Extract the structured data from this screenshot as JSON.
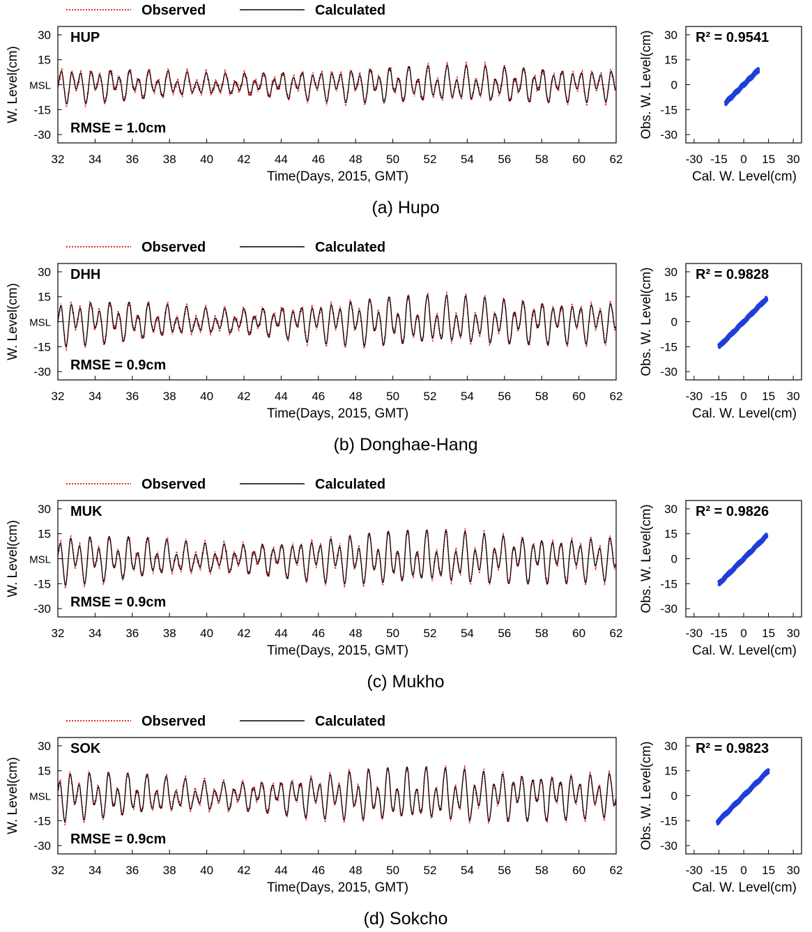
{
  "legend": {
    "observed": "Observed",
    "calculated": "Calculated"
  },
  "colors": {
    "observed": "#e8262a",
    "calculated": "#000000",
    "scatter": "#1f3fd8",
    "axis": "#000000",
    "msl_line": "#999999"
  },
  "chart_data": [
    {
      "type": "line",
      "panel": "(a) Hupo",
      "code": "HUP",
      "rmse_label": "RMSE = 1.0cm",
      "xlabel": "Time(Days, 2015, GMT)",
      "ylabel": "W. Level(cm)",
      "xlim": [
        32,
        62
      ],
      "ylim": [
        -35,
        35
      ],
      "x_ticks": [
        32,
        34,
        36,
        38,
        40,
        42,
        44,
        46,
        48,
        50,
        52,
        54,
        56,
        58,
        60,
        62
      ],
      "y_ticks": [
        30,
        15,
        "MSL",
        -15,
        -30
      ],
      "series": [
        {
          "name": "Observed",
          "style": "dotted"
        },
        {
          "name": "Calculated",
          "style": "solid"
        }
      ],
      "tide_amplitude_cm": {
        "start": 10,
        "mid": 6,
        "spring": 10,
        "end": 8
      },
      "scatter": {
        "xlabel": "Cal. W. Level(cm)",
        "ylabel": "Obs. W. Level(cm)",
        "r2_label": "R² = 0.9541",
        "xlim": [
          -35,
          35
        ],
        "ylim": [
          -35,
          35
        ],
        "x_ticks": [
          -30,
          -15,
          0,
          15,
          30
        ],
        "y_ticks": [
          30,
          15,
          0,
          -15,
          -30
        ],
        "range": [
          -11,
          9
        ]
      }
    },
    {
      "type": "line",
      "panel": "(b) Donghae-Hang",
      "code": "DHH",
      "rmse_label": "RMSE = 0.9cm",
      "xlabel": "Time(Days, 2015, GMT)",
      "ylabel": "W. Level(cm)",
      "xlim": [
        32,
        62
      ],
      "ylim": [
        -35,
        35
      ],
      "x_ticks": [
        32,
        34,
        36,
        38,
        40,
        42,
        44,
        46,
        48,
        50,
        52,
        54,
        56,
        58,
        60,
        62
      ],
      "y_ticks": [
        30,
        15,
        "MSL",
        -15,
        -30
      ],
      "series": [
        {
          "name": "Observed",
          "style": "dotted"
        },
        {
          "name": "Calculated",
          "style": "solid"
        }
      ],
      "tide_amplitude_cm": {
        "start": 13,
        "mid": 7,
        "spring": 14,
        "end": 10
      },
      "scatter": {
        "xlabel": "Cal. W. Level(cm)",
        "ylabel": "Obs. W. Level(cm)",
        "r2_label": "R² = 0.9828",
        "xlim": [
          -35,
          35
        ],
        "ylim": [
          -35,
          35
        ],
        "x_ticks": [
          -30,
          -15,
          0,
          15,
          30
        ],
        "y_ticks": [
          30,
          15,
          0,
          -15,
          -30
        ],
        "range": [
          -15,
          14
        ]
      }
    },
    {
      "type": "line",
      "panel": "(c) Mukho",
      "code": "MUK",
      "rmse_label": "RMSE = 0.9cm",
      "xlabel": "Time(Days, 2015, GMT)",
      "ylabel": "W. Level(cm)",
      "xlim": [
        32,
        62
      ],
      "ylim": [
        -35,
        35
      ],
      "x_ticks": [
        32,
        34,
        36,
        38,
        40,
        42,
        44,
        46,
        48,
        50,
        52,
        54,
        56,
        58,
        60,
        62
      ],
      "y_ticks": [
        30,
        15,
        "MSL",
        -15,
        -30
      ],
      "series": [
        {
          "name": "Observed",
          "style": "dotted"
        },
        {
          "name": "Calculated",
          "style": "solid"
        }
      ],
      "tide_amplitude_cm": {
        "start": 14,
        "mid": 8,
        "spring": 15,
        "end": 11
      },
      "scatter": {
        "xlabel": "Cal. W. Level(cm)",
        "ylabel": "Obs. W. Level(cm)",
        "r2_label": "R² = 0.9826",
        "xlim": [
          -35,
          35
        ],
        "ylim": [
          -35,
          35
        ],
        "x_ticks": [
          -30,
          -15,
          0,
          15,
          30
        ],
        "y_ticks": [
          30,
          15,
          0,
          -15,
          -30
        ],
        "range": [
          -15,
          14
        ]
      }
    },
    {
      "type": "line",
      "panel": "(d) Sokcho",
      "code": "SOK",
      "rmse_label": "RMSE = 0.9cm",
      "xlabel": "Time(Days, 2015, GMT)",
      "ylabel": "W. Level(cm)",
      "xlim": [
        32,
        62
      ],
      "ylim": [
        -35,
        35
      ],
      "x_ticks": [
        32,
        34,
        36,
        38,
        40,
        42,
        44,
        46,
        48,
        50,
        52,
        54,
        56,
        58,
        60,
        62
      ],
      "y_ticks": [
        30,
        15,
        "MSL",
        -15,
        -30
      ],
      "series": [
        {
          "name": "Observed",
          "style": "dotted"
        },
        {
          "name": "Calculated",
          "style": "solid"
        }
      ],
      "tide_amplitude_cm": {
        "start": 14,
        "mid": 8,
        "spring": 15,
        "end": 11
      },
      "scatter": {
        "xlabel": "Cal. W. Level(cm)",
        "ylabel": "Obs. W. Level(cm)",
        "r2_label": "R² = 0.9823",
        "xlim": [
          -35,
          35
        ],
        "ylim": [
          -35,
          35
        ],
        "x_ticks": [
          -30,
          -15,
          0,
          15,
          30
        ],
        "y_ticks": [
          30,
          15,
          0,
          -15,
          -30
        ],
        "range": [
          -16,
          15
        ]
      }
    }
  ]
}
